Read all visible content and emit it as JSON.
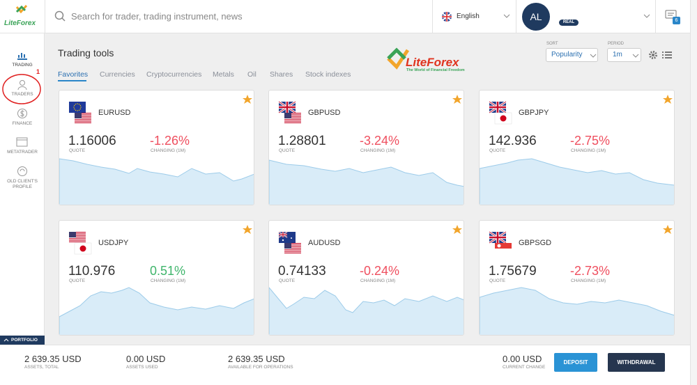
{
  "logo": "LiteForex",
  "header": {
    "search_placeholder": "Search for trader, trading instrument, news",
    "language": "English",
    "avatar": "AL",
    "account_type": "REAL",
    "notifications": "6"
  },
  "sidebar": {
    "items": [
      "TRADING",
      "TRADERS",
      "FINANCE",
      "METATRADER",
      "OLD CLIENT'S PROFILE"
    ],
    "annotation": "1",
    "portfolio": "PORTFOLIO"
  },
  "main": {
    "title": "Trading tools",
    "tabs": [
      "Favorites",
      "Currencies",
      "Cryptocurrencies",
      "Metals",
      "Oil",
      "Shares",
      "Stock indexes"
    ],
    "brand": {
      "name": "LiteForex",
      "slogan": "The World of Financial Freedom"
    },
    "sort": {
      "label": "SORT",
      "value": "Popularity"
    },
    "period": {
      "label": "PERIOD",
      "value": "1m"
    }
  },
  "cards": [
    {
      "pair": "EURUSD",
      "quote": "1.16006",
      "quote_label": "QUOTE",
      "change": "-1.26%",
      "change_label": "CHANGING (1M)"
    },
    {
      "pair": "GBPUSD",
      "quote": "1.28801",
      "quote_label": "QUOTE",
      "change": "-3.24%",
      "change_label": "CHANGING (1M)"
    },
    {
      "pair": "GBPJPY",
      "quote": "142.936",
      "quote_label": "QUOTE",
      "change": "-2.75%",
      "change_label": "CHANGING (1M)"
    },
    {
      "pair": "USDJPY",
      "quote": "110.976",
      "quote_label": "QUOTE",
      "change": "0.51%",
      "change_label": "CHANGING (1M)"
    },
    {
      "pair": "AUDUSD",
      "quote": "0.74133",
      "quote_label": "QUOTE",
      "change": "-0.24%",
      "change_label": "CHANGING (1M)"
    },
    {
      "pair": "GBPSGD",
      "quote": "1.75679",
      "quote_label": "QUOTE",
      "change": "-2.73%",
      "change_label": "CHANGING (1M)"
    }
  ],
  "footer": {
    "stats": [
      {
        "value": "2 639.35 USD",
        "label": "ASSETS, TOTAL"
      },
      {
        "value": "0.00 USD",
        "label": "ASSETS USED"
      },
      {
        "value": "2 639.35 USD",
        "label": "AVAILABLE FOR OPERATIONS"
      },
      {
        "value": "0.00 USD",
        "label": "CURRENT CHANGE"
      }
    ],
    "buttons": [
      "DEPOSIT",
      "WITHDRAWAL"
    ]
  }
}
